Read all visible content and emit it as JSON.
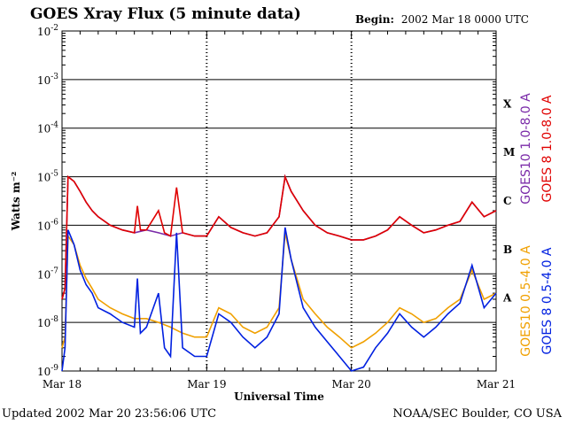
{
  "header": {
    "title": "GOES Xray Flux (5 minute data)",
    "begin_label": "Begin:",
    "begin_value": "2002 Mar 18 0000 UTC"
  },
  "footer": {
    "updated": "Updated 2002 Mar 20 23:56:06 UTC",
    "credit": "NOAA/SEC Boulder, CO USA"
  },
  "chart_data": {
    "type": "line",
    "title": "GOES Xray Flux (5 minute data)",
    "xlabel": "Universal Time",
    "ylabel": "Watts m⁻²",
    "y_scale": "log",
    "ylim": [
      1e-09,
      0.01
    ],
    "xlim": [
      0,
      72
    ],
    "x_units": "hours since 2002 Mar 18 0000 UTC",
    "x_ticks": [
      {
        "x": 0,
        "label": "Mar 18"
      },
      {
        "x": 24,
        "label": "Mar 19"
      },
      {
        "x": 48,
        "label": "Mar 20"
      },
      {
        "x": 72,
        "label": "Mar 21"
      }
    ],
    "y_ticks": [
      {
        "exp": -2,
        "label": "10",
        "sup": "-2"
      },
      {
        "exp": -3,
        "label": "10",
        "sup": "-3"
      },
      {
        "exp": -4,
        "label": "10",
        "sup": "-4"
      },
      {
        "exp": -5,
        "label": "10",
        "sup": "-5"
      },
      {
        "exp": -6,
        "label": "10",
        "sup": "-6"
      },
      {
        "exp": -7,
        "label": "10",
        "sup": "-7"
      },
      {
        "exp": -8,
        "label": "10",
        "sup": "-8"
      },
      {
        "exp": -9,
        "label": "10",
        "sup": "-9"
      }
    ],
    "flare_classes": [
      {
        "label": "X",
        "level": 0.0001
      },
      {
        "label": "M",
        "level": 1e-05
      },
      {
        "label": "C",
        "level": 1e-06
      },
      {
        "label": "B",
        "level": 1e-07
      },
      {
        "label": "A",
        "level": 1e-08
      }
    ],
    "grid": {
      "horizontal_decades": true,
      "day_separators": true
    },
    "legend_placement": "right-vertical",
    "series": [
      {
        "name": "GOES10 1.0-8.0 A",
        "color": "#7a2aa8",
        "points": [
          [
            0,
            3e-08
          ],
          [
            0.5,
            5e-08
          ],
          [
            1,
            1e-05
          ],
          [
            2,
            8e-06
          ],
          [
            3,
            5e-06
          ],
          [
            4,
            3e-06
          ],
          [
            5,
            2e-06
          ],
          [
            6,
            1.5e-06
          ],
          [
            8,
            1e-06
          ],
          [
            10,
            8e-07
          ],
          [
            12,
            7e-07
          ],
          [
            14,
            8e-07
          ],
          [
            16,
            7e-07
          ],
          [
            18,
            6e-07
          ],
          [
            20,
            7e-07
          ],
          [
            22,
            6e-07
          ],
          [
            24,
            6e-07
          ],
          [
            26,
            1.5e-06
          ],
          [
            28,
            9e-07
          ],
          [
            30,
            7e-07
          ],
          [
            32,
            6e-07
          ],
          [
            34,
            7e-07
          ],
          [
            36,
            1.5e-06
          ],
          [
            37,
            1e-05
          ],
          [
            38,
            5e-06
          ],
          [
            40,
            2e-06
          ],
          [
            42,
            1e-06
          ],
          [
            44,
            7e-07
          ],
          [
            46,
            6e-07
          ],
          [
            48,
            5e-07
          ],
          [
            50,
            5e-07
          ],
          [
            52,
            6e-07
          ],
          [
            54,
            8e-07
          ],
          [
            56,
            1.5e-06
          ],
          [
            58,
            1e-06
          ],
          [
            60,
            7e-07
          ],
          [
            62,
            8e-07
          ],
          [
            64,
            1e-06
          ],
          [
            66,
            1.2e-06
          ],
          [
            68,
            3e-06
          ],
          [
            70,
            1.5e-06
          ],
          [
            72,
            2e-06
          ]
        ]
      },
      {
        "name": "GOES 8 1.0-8.0 A",
        "color": "#e00000",
        "points": [
          [
            0,
            3e-08
          ],
          [
            0.5,
            5e-08
          ],
          [
            1,
            1e-05
          ],
          [
            2,
            8e-06
          ],
          [
            3,
            5e-06
          ],
          [
            4,
            3e-06
          ],
          [
            5,
            2e-06
          ],
          [
            6,
            1.5e-06
          ],
          [
            8,
            1e-06
          ],
          [
            10,
            8e-07
          ],
          [
            12,
            7e-07
          ],
          [
            12.5,
            2.5e-06
          ],
          [
            13,
            8e-07
          ],
          [
            14,
            8e-07
          ],
          [
            16,
            2e-06
          ],
          [
            17,
            7e-07
          ],
          [
            18,
            6e-07
          ],
          [
            19,
            6e-06
          ],
          [
            20,
            7e-07
          ],
          [
            22,
            6e-07
          ],
          [
            24,
            6e-07
          ],
          [
            26,
            1.5e-06
          ],
          [
            28,
            9e-07
          ],
          [
            30,
            7e-07
          ],
          [
            32,
            6e-07
          ],
          [
            34,
            7e-07
          ],
          [
            36,
            1.5e-06
          ],
          [
            37,
            1e-05
          ],
          [
            38,
            5e-06
          ],
          [
            40,
            2e-06
          ],
          [
            42,
            1e-06
          ],
          [
            44,
            7e-07
          ],
          [
            46,
            6e-07
          ],
          [
            48,
            5e-07
          ],
          [
            50,
            5e-07
          ],
          [
            52,
            6e-07
          ],
          [
            54,
            8e-07
          ],
          [
            56,
            1.5e-06
          ],
          [
            58,
            1e-06
          ],
          [
            60,
            7e-07
          ],
          [
            62,
            8e-07
          ],
          [
            64,
            1e-06
          ],
          [
            66,
            1.2e-06
          ],
          [
            68,
            3e-06
          ],
          [
            70,
            1.5e-06
          ],
          [
            72,
            2e-06
          ]
        ]
      },
      {
        "name": "GOES10 0.5-4.0 A",
        "color": "#f0a000",
        "points": [
          [
            0,
            3e-09
          ],
          [
            0.5,
            5e-09
          ],
          [
            1,
            6e-07
          ],
          [
            2,
            4e-07
          ],
          [
            3,
            1.5e-07
          ],
          [
            4,
            8e-08
          ],
          [
            5,
            5e-08
          ],
          [
            6,
            3e-08
          ],
          [
            8,
            2e-08
          ],
          [
            10,
            1.5e-08
          ],
          [
            12,
            1.2e-08
          ],
          [
            14,
            1.2e-08
          ],
          [
            16,
            1e-08
          ],
          [
            18,
            8e-09
          ],
          [
            20,
            6e-09
          ],
          [
            22,
            5e-09
          ],
          [
            24,
            5e-09
          ],
          [
            26,
            2e-08
          ],
          [
            28,
            1.5e-08
          ],
          [
            30,
            8e-09
          ],
          [
            32,
            6e-09
          ],
          [
            34,
            8e-09
          ],
          [
            36,
            2e-08
          ],
          [
            37,
            7e-07
          ],
          [
            38,
            2e-07
          ],
          [
            40,
            3e-08
          ],
          [
            42,
            1.5e-08
          ],
          [
            44,
            8e-09
          ],
          [
            46,
            5e-09
          ],
          [
            48,
            3e-09
          ],
          [
            50,
            4e-09
          ],
          [
            52,
            6e-09
          ],
          [
            54,
            1e-08
          ],
          [
            56,
            2e-08
          ],
          [
            58,
            1.5e-08
          ],
          [
            60,
            1e-08
          ],
          [
            62,
            1.2e-08
          ],
          [
            64,
            2e-08
          ],
          [
            66,
            3e-08
          ],
          [
            68,
            1.2e-07
          ],
          [
            70,
            3e-08
          ],
          [
            72,
            4e-08
          ]
        ]
      },
      {
        "name": "GOES 8 0.5-4.0 A",
        "color": "#0020e0",
        "points": [
          [
            0,
            1e-09
          ],
          [
            0.5,
            3e-09
          ],
          [
            1,
            8e-07
          ],
          [
            2,
            4e-07
          ],
          [
            3,
            1.2e-07
          ],
          [
            4,
            6e-08
          ],
          [
            5,
            4e-08
          ],
          [
            6,
            2e-08
          ],
          [
            8,
            1.5e-08
          ],
          [
            10,
            1e-08
          ],
          [
            12,
            8e-09
          ],
          [
            12.5,
            8e-08
          ],
          [
            13,
            6e-09
          ],
          [
            14,
            8e-09
          ],
          [
            16,
            4e-08
          ],
          [
            17,
            3e-09
          ],
          [
            18,
            2e-09
          ],
          [
            19,
            7e-07
          ],
          [
            20,
            3e-09
          ],
          [
            22,
            2e-09
          ],
          [
            24,
            2e-09
          ],
          [
            26,
            1.5e-08
          ],
          [
            28,
            1e-08
          ],
          [
            30,
            5e-09
          ],
          [
            32,
            3e-09
          ],
          [
            34,
            5e-09
          ],
          [
            36,
            1.5e-08
          ],
          [
            37,
            9e-07
          ],
          [
            38,
            2e-07
          ],
          [
            40,
            2e-08
          ],
          [
            42,
            8e-09
          ],
          [
            44,
            4e-09
          ],
          [
            46,
            2e-09
          ],
          [
            48,
            1e-09
          ],
          [
            50,
            1.2e-09
          ],
          [
            52,
            3e-09
          ],
          [
            54,
            6e-09
          ],
          [
            56,
            1.5e-08
          ],
          [
            58,
            8e-09
          ],
          [
            60,
            5e-09
          ],
          [
            62,
            8e-09
          ],
          [
            64,
            1.5e-08
          ],
          [
            66,
            2.5e-08
          ],
          [
            68,
            1.5e-07
          ],
          [
            70,
            2e-08
          ],
          [
            72,
            4e-08
          ]
        ]
      }
    ]
  }
}
